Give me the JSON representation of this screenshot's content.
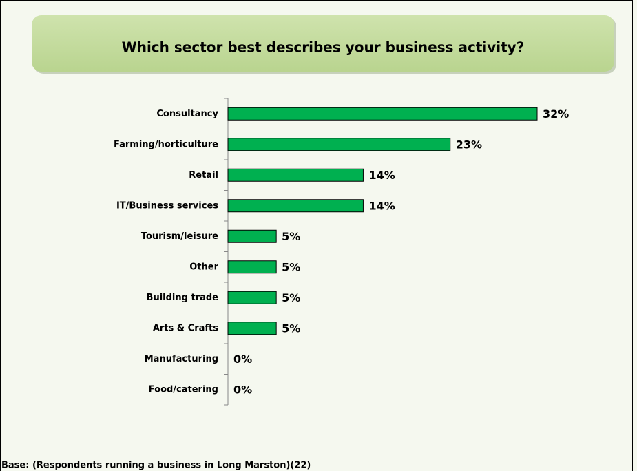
{
  "chart_data": {
    "type": "barh",
    "title": "Which sector best describes your business activity?",
    "categories": [
      "Consultancy",
      "Farming/horticulture",
      "Retail",
      "IT/Business services",
      "Tourism/leisure",
      "Other",
      "Building trade",
      "Arts & Crafts",
      "Manufacturing",
      "Food/catering"
    ],
    "values": [
      32,
      23,
      14,
      14,
      5,
      5,
      5,
      5,
      0,
      0
    ],
    "value_labels": [
      "32%",
      "23%",
      "14%",
      "14%",
      "5%",
      "5%",
      "5%",
      "5%",
      "0%",
      "0%"
    ],
    "color": "#00b050",
    "xlim": [
      0,
      32
    ],
    "footnote": "Base: (Respondents running a business in Long Marston)(22)"
  }
}
